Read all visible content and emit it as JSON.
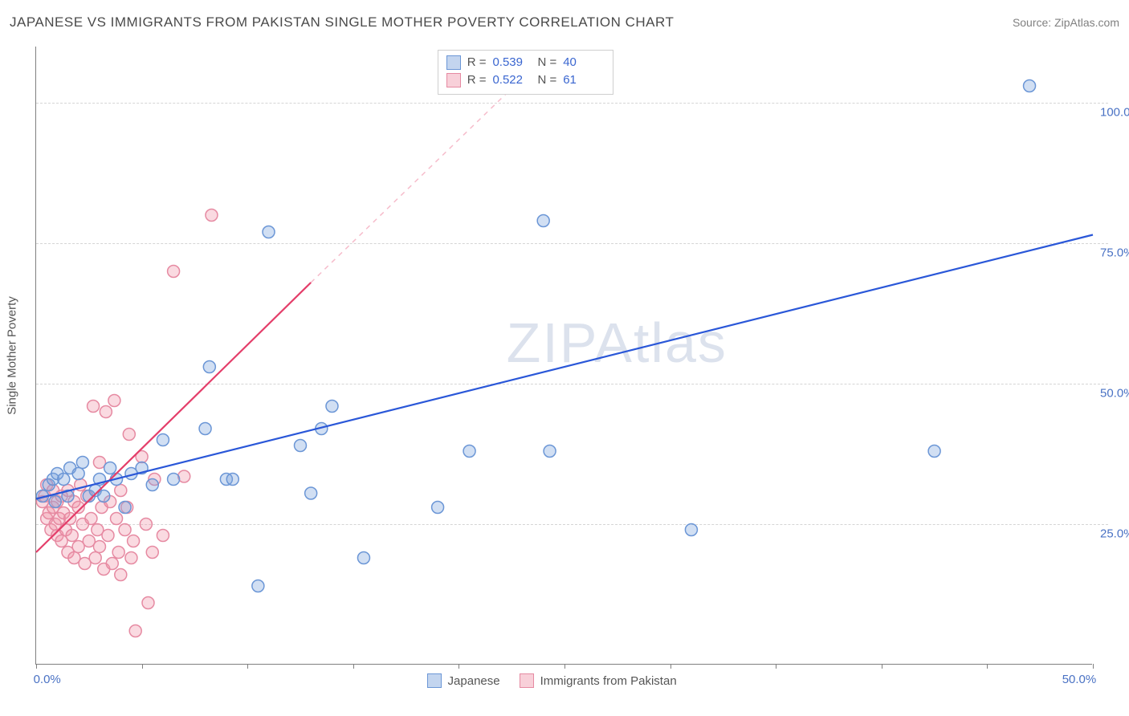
{
  "title": "JAPANESE VS IMMIGRANTS FROM PAKISTAN SINGLE MOTHER POVERTY CORRELATION CHART",
  "source": "Source: ZipAtlas.com",
  "watermark": "ZIPAtlas",
  "y_axis_title": "Single Mother Poverty",
  "chart": {
    "type": "scatter",
    "xlim": [
      0,
      50
    ],
    "ylim": [
      0,
      110
    ],
    "x_ticks": [
      0,
      5,
      10,
      15,
      20,
      25,
      30,
      35,
      40,
      45,
      50
    ],
    "x_tick_labels": {
      "0": "0.0%",
      "50": "50.0%"
    },
    "y_gridlines": [
      25,
      50,
      75,
      100
    ],
    "y_tick_labels": {
      "25": "25.0%",
      "50": "50.0%",
      "75": "75.0%",
      "100": "100.0%"
    },
    "background_color": "#ffffff",
    "grid_color": "#d5d5d5",
    "axis_color": "#808080",
    "marker_radius": 7.5,
    "marker_stroke_width": 1.5,
    "series": [
      {
        "name": "Japanese",
        "fill": "rgba(122,162,220,0.35)",
        "stroke": "#6b96d6",
        "R": "0.539",
        "N": "40",
        "trend": {
          "x1": 0,
          "y1": 29.5,
          "x2": 50,
          "y2": 76.5,
          "color": "#2a57d8",
          "width": 2.2,
          "dash": ""
        },
        "points": [
          [
            0.3,
            30
          ],
          [
            0.6,
            32
          ],
          [
            0.8,
            33
          ],
          [
            0.9,
            29
          ],
          [
            1.0,
            34
          ],
          [
            1.3,
            33
          ],
          [
            1.5,
            30
          ],
          [
            1.6,
            35
          ],
          [
            2.0,
            34
          ],
          [
            2.2,
            36
          ],
          [
            2.5,
            30
          ],
          [
            2.8,
            31
          ],
          [
            3.0,
            33
          ],
          [
            3.2,
            30
          ],
          [
            3.5,
            35
          ],
          [
            3.8,
            33
          ],
          [
            4.2,
            28
          ],
          [
            4.5,
            34
          ],
          [
            5.0,
            35
          ],
          [
            5.5,
            32
          ],
          [
            6.0,
            40
          ],
          [
            6.5,
            33
          ],
          [
            8.0,
            42
          ],
          [
            8.2,
            53
          ],
          [
            9.0,
            33
          ],
          [
            9.3,
            33
          ],
          [
            10.5,
            14
          ],
          [
            11.0,
            77
          ],
          [
            12.5,
            39
          ],
          [
            13.0,
            30.5
          ],
          [
            13.5,
            42
          ],
          [
            14.0,
            46
          ],
          [
            15.5,
            19
          ],
          [
            19.0,
            28
          ],
          [
            20.5,
            38
          ],
          [
            24.0,
            79
          ],
          [
            24.3,
            38
          ],
          [
            31.0,
            24
          ],
          [
            42.5,
            38
          ],
          [
            47.0,
            103
          ]
        ]
      },
      {
        "name": "Immigrants from Pakistan",
        "fill": "rgba(240,150,170,0.35)",
        "stroke": "#e68aa2",
        "R": "0.522",
        "N": "61",
        "trend_solid": {
          "x1": 0,
          "y1": 20,
          "x2": 13,
          "y2": 68,
          "color": "#e43e6a",
          "width": 2.2
        },
        "trend_dash": {
          "x1": 13,
          "y1": 68,
          "x2": 24,
          "y2": 108,
          "color": "rgba(228,62,106,0.35)",
          "width": 1.5
        },
        "points": [
          [
            0.3,
            29
          ],
          [
            0.4,
            30
          ],
          [
            0.5,
            26
          ],
          [
            0.5,
            32
          ],
          [
            0.6,
            27
          ],
          [
            0.7,
            24
          ],
          [
            0.8,
            28
          ],
          [
            0.8,
            31
          ],
          [
            0.9,
            25
          ],
          [
            1.0,
            23
          ],
          [
            1.0,
            29
          ],
          [
            1.1,
            26
          ],
          [
            1.2,
            22
          ],
          [
            1.2,
            30
          ],
          [
            1.3,
            27
          ],
          [
            1.4,
            24
          ],
          [
            1.5,
            20
          ],
          [
            1.5,
            31
          ],
          [
            1.6,
            26
          ],
          [
            1.7,
            23
          ],
          [
            1.8,
            29
          ],
          [
            1.8,
            19
          ],
          [
            2.0,
            21
          ],
          [
            2.0,
            28
          ],
          [
            2.1,
            32
          ],
          [
            2.2,
            25
          ],
          [
            2.3,
            18
          ],
          [
            2.4,
            30
          ],
          [
            2.5,
            22
          ],
          [
            2.6,
            26
          ],
          [
            2.7,
            46
          ],
          [
            2.8,
            19
          ],
          [
            2.9,
            24
          ],
          [
            3.0,
            36
          ],
          [
            3.0,
            21
          ],
          [
            3.1,
            28
          ],
          [
            3.2,
            17
          ],
          [
            3.3,
            45
          ],
          [
            3.4,
            23
          ],
          [
            3.5,
            29
          ],
          [
            3.6,
            18
          ],
          [
            3.7,
            47
          ],
          [
            3.8,
            26
          ],
          [
            3.9,
            20
          ],
          [
            4.0,
            16
          ],
          [
            4.0,
            31
          ],
          [
            4.2,
            24
          ],
          [
            4.3,
            28
          ],
          [
            4.4,
            41
          ],
          [
            4.5,
            19
          ],
          [
            4.6,
            22
          ],
          [
            5.0,
            37
          ],
          [
            5.2,
            25
          ],
          [
            5.3,
            11
          ],
          [
            5.5,
            20
          ],
          [
            5.6,
            33
          ],
          [
            6.0,
            23
          ],
          [
            6.5,
            70
          ],
          [
            7.0,
            33.5
          ],
          [
            4.7,
            6
          ],
          [
            8.3,
            80
          ]
        ]
      }
    ]
  },
  "legend": {
    "series1_label": "Japanese",
    "series2_label": "Immigrants from Pakistan",
    "swatch1_fill": "rgba(122,162,220,0.45)",
    "swatch1_border": "#6b96d6",
    "swatch2_fill": "rgba(240,150,170,0.45)",
    "swatch2_border": "#e68aa2",
    "R_label": "R  =",
    "N_label": "N  ="
  }
}
